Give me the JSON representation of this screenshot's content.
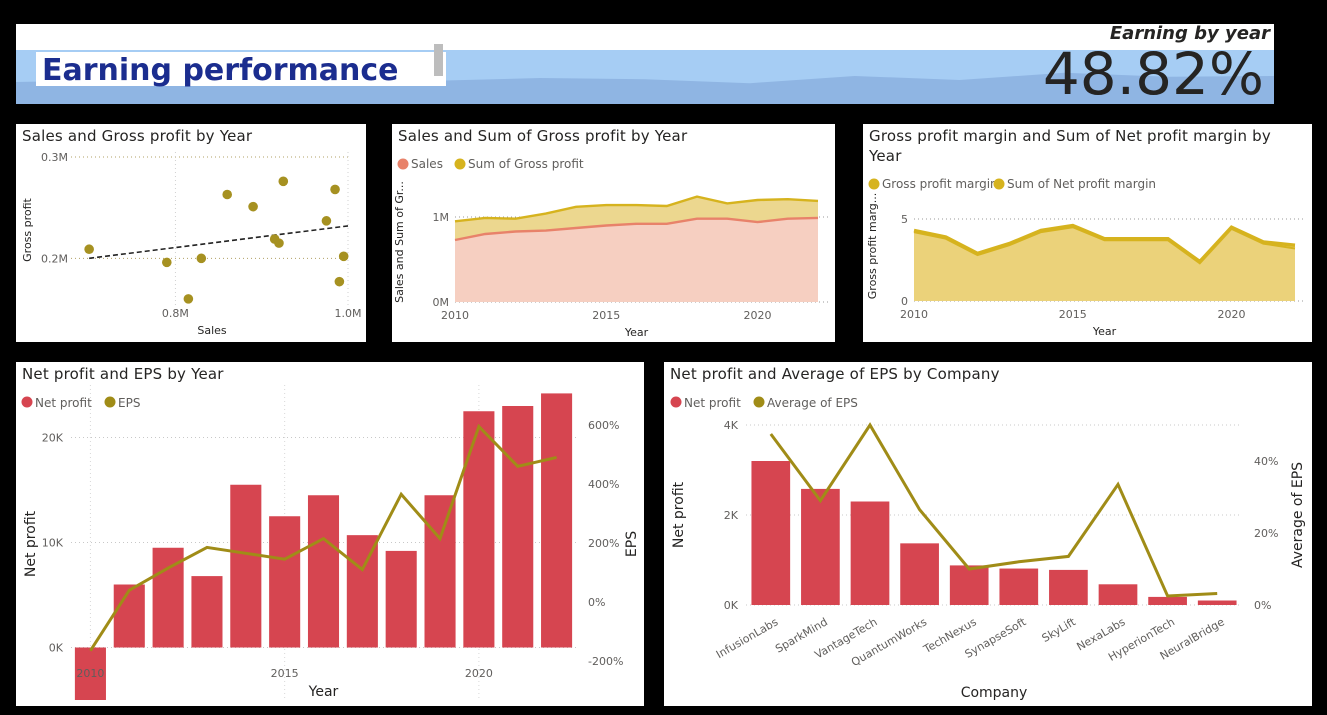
{
  "header": {
    "title": "Earning performance",
    "kpi_label": "Earning by year",
    "kpi_value": "48.82%",
    "sparkline": [
      0.55,
      0.6,
      0.5,
      0.72,
      0.58,
      0.65,
      0.62,
      0.52,
      0.7,
      0.6,
      0.78,
      0.68,
      0.7
    ],
    "colors": {
      "band": "#a6cdf4",
      "area": "#8fb5e3",
      "title": "#1b2d8f"
    }
  },
  "colors": {
    "sales": "#e8826a",
    "gross_profit": "#d6b31e",
    "net_profit": "#d64550",
    "eps": "#a08c17",
    "scatter": "#a69121",
    "area_fill": "#ebd27a"
  },
  "chart_data": [
    {
      "id": "scatter",
      "type": "scatter",
      "title": "Sales and Gross profit by Year",
      "xlabel": "Sales",
      "ylabel": "Gross profit",
      "xlim": [
        0.65,
        1.0
      ],
      "ylim": [
        0.15,
        0.3
      ],
      "xticks": [
        {
          "v": 0.8,
          "label": "0.8M"
        },
        {
          "v": 1.0,
          "label": "1.0M"
        }
      ],
      "yticks": [
        {
          "v": 0.2,
          "label": "0.2M"
        },
        {
          "v": 0.3,
          "label": "0.3M"
        }
      ],
      "points": [
        {
          "x": 0.7,
          "y": 0.209
        },
        {
          "x": 0.79,
          "y": 0.196
        },
        {
          "x": 0.815,
          "y": 0.16
        },
        {
          "x": 0.83,
          "y": 0.2
        },
        {
          "x": 0.86,
          "y": 0.263
        },
        {
          "x": 0.89,
          "y": 0.251
        },
        {
          "x": 0.915,
          "y": 0.219
        },
        {
          "x": 0.92,
          "y": 0.215
        },
        {
          "x": 0.925,
          "y": 0.276
        },
        {
          "x": 0.975,
          "y": 0.237
        },
        {
          "x": 0.985,
          "y": 0.268
        },
        {
          "x": 0.995,
          "y": 0.202
        },
        {
          "x": 0.99,
          "y": 0.177
        }
      ],
      "trend": [
        {
          "x": 0.7,
          "y": 0.2
        },
        {
          "x": 1.0,
          "y": 0.232
        }
      ]
    },
    {
      "id": "stacked-area",
      "type": "area",
      "title": "Sales and Sum of Gross profit by Year",
      "xlabel": "Year",
      "ylabel": "Sales and Sum of Gr...",
      "legend": [
        "Sales",
        "Sum of Gross profit"
      ],
      "x": [
        2010,
        2011,
        2012,
        2013,
        2014,
        2015,
        2016,
        2017,
        2018,
        2019,
        2020,
        2021,
        2022
      ],
      "xticks": [
        2010,
        2015,
        2020
      ],
      "yticks": [
        {
          "v": 0,
          "label": "0M"
        },
        {
          "v": 1.0,
          "label": "1M"
        }
      ],
      "ylim": [
        0,
        1.8
      ],
      "series": [
        {
          "name": "Sales",
          "values": [
            0.73,
            0.8,
            0.83,
            0.84,
            0.87,
            0.9,
            0.92,
            0.92,
            0.98,
            0.98,
            0.94,
            0.98,
            0.99
          ]
        },
        {
          "name": "Sum of Gross profit",
          "values": [
            0.95,
            0.99,
            0.98,
            1.04,
            1.12,
            1.14,
            1.14,
            1.13,
            1.24,
            1.16,
            1.2,
            1.21,
            1.19
          ]
        }
      ]
    },
    {
      "id": "margin-area",
      "type": "area",
      "title": "Gross profit margin and Sum of Net profit margin by Year",
      "xlabel": "Year",
      "ylabel": "Gross profit marg...",
      "legend": [
        "Gross profit margin",
        "Sum of Net profit margin"
      ],
      "x": [
        2010,
        2011,
        2012,
        2013,
        2014,
        2015,
        2016,
        2017,
        2018,
        2019,
        2020,
        2021,
        2022
      ],
      "xticks": [
        2010,
        2015,
        2020
      ],
      "yticks": [
        {
          "v": 0,
          "label": "0"
        },
        {
          "v": 5,
          "label": "5"
        }
      ],
      "ylim": [
        0,
        7.5
      ],
      "series": [
        {
          "name": "Gross profit margin",
          "values": [
            4.3,
            3.9,
            2.9,
            3.5,
            4.3,
            4.6,
            3.8,
            3.8,
            3.8,
            2.4,
            4.5,
            3.6,
            3.4
          ]
        },
        {
          "name": "Sum of Net profit margin",
          "values": [
            4.2,
            3.8,
            2.8,
            3.4,
            4.2,
            4.5,
            3.7,
            3.7,
            3.7,
            2.3,
            4.4,
            3.5,
            3.2
          ]
        }
      ]
    },
    {
      "id": "np-eps-year",
      "type": "bar",
      "title": "Net profit and EPS by Year",
      "xlabel": "Year",
      "ylabel": "Net profit",
      "y2label": "EPS",
      "legend": [
        "Net profit",
        "EPS"
      ],
      "categories": [
        2010,
        2011,
        2012,
        2013,
        2014,
        2015,
        2016,
        2017,
        2018,
        2019,
        2020,
        2021,
        2022
      ],
      "xticks": [
        2010,
        2015,
        2020
      ],
      "ylim": [
        -5000,
        25000
      ],
      "yticks": [
        {
          "v": 0,
          "label": "0K"
        },
        {
          "v": 10000,
          "label": "10K"
        },
        {
          "v": 20000,
          "label": "20K"
        }
      ],
      "y2lim": [
        -200,
        600
      ],
      "y2ticks": [
        {
          "v": -200,
          "label": "-200%"
        },
        {
          "v": 0,
          "label": "0%"
        },
        {
          "v": 200,
          "label": "200%"
        },
        {
          "v": 400,
          "label": "400%"
        },
        {
          "v": 600,
          "label": "600%"
        }
      ],
      "series": [
        {
          "name": "Net profit",
          "values": [
            -5000,
            6000,
            9500,
            6800,
            15500,
            12500,
            14500,
            10700,
            9200,
            14500,
            22500,
            23000,
            24200
          ]
        },
        {
          "name": "EPS",
          "values": [
            -165,
            40,
            115,
            185,
            165,
            145,
            215,
            110,
            365,
            215,
            595,
            460,
            490
          ]
        }
      ]
    },
    {
      "id": "np-eps-company",
      "type": "bar",
      "title": "Net profit and Average of EPS by Company",
      "xlabel": "Company",
      "ylabel": "Net profit",
      "y2label": "Average of EPS",
      "legend": [
        "Net profit",
        "Average of EPS"
      ],
      "categories": [
        "InfusionLabs",
        "SparkMind",
        "VantageTech",
        "QuantumWorks",
        "TechNexus",
        "SynapseSoft",
        "SkyLift",
        "NexaLabs",
        "HyperionTech",
        "NeuralBridge"
      ],
      "ylim": [
        0,
        4000
      ],
      "yticks": [
        {
          "v": 0,
          "label": "0K"
        },
        {
          "v": 2000,
          "label": "2K"
        },
        {
          "v": 4000,
          "label": "4K"
        }
      ],
      "y2lim": [
        0,
        50
      ],
      "y2ticks": [
        {
          "v": 0,
          "label": "0%"
        },
        {
          "v": 20,
          "label": "20%"
        },
        {
          "v": 40,
          "label": "40%"
        }
      ],
      "series": [
        {
          "name": "Net profit",
          "values": [
            3200,
            2580,
            2300,
            1370,
            880,
            810,
            780,
            460,
            180,
            100
          ]
        },
        {
          "name": "Average of EPS",
          "values": [
            47.5,
            29,
            50,
            26.5,
            10,
            12,
            13.5,
            33.5,
            2.5,
            3.2
          ]
        }
      ]
    }
  ]
}
